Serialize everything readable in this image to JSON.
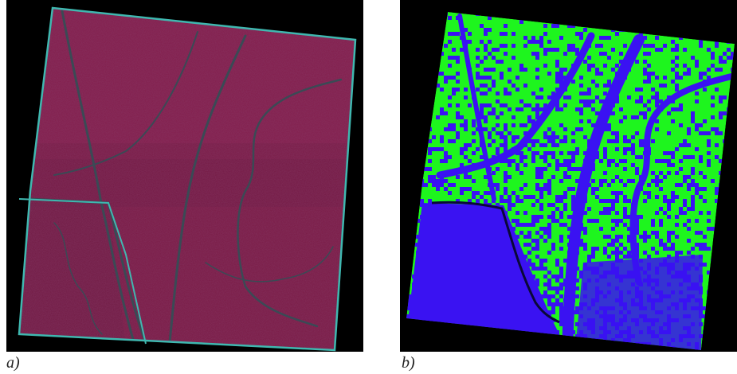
{
  "figure": {
    "panel_a": {
      "caption": "a)",
      "colors": {
        "background": "#000000",
        "field": "#7a1a45",
        "field_dark": "#5e1236",
        "field_light": "#8f2554",
        "border": "#3fb8b0",
        "channel": "#3a4a55"
      }
    },
    "panel_b": {
      "caption": "b)",
      "colors": {
        "background": "#000000",
        "class_1": "#3a12f2",
        "class_2": "#1ef51e",
        "dark_channel": "#0a0838"
      }
    }
  }
}
